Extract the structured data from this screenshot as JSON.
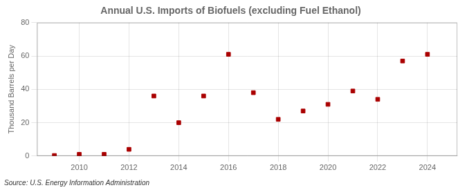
{
  "chart_data": {
    "type": "scatter",
    "title": "Annual U.S. Imports of Biofuels (excluding Fuel Ethanol)",
    "ylabel": "Thousand Barrels per Day",
    "annotation": "Source: U.S. Energy Information Administration",
    "x": [
      2009,
      2010,
      2011,
      2012,
      2013,
      2014,
      2015,
      2016,
      2017,
      2018,
      2019,
      2020,
      2021,
      2022,
      2023,
      2024
    ],
    "values": [
      0.3,
      1.0,
      1.0,
      4.0,
      36.0,
      20.0,
      36.0,
      61.0,
      38.0,
      22.0,
      27.0,
      31.0,
      39.0,
      34.0,
      57.0,
      61.0
    ],
    "color": "#aa0000",
    "marker": "square",
    "xlim": [
      2008.3,
      2025.2
    ],
    "xticks": [
      2010,
      2012,
      2014,
      2016,
      2018,
      2020,
      2022,
      2024
    ],
    "ylim": [
      0,
      80
    ],
    "yticks": [
      0,
      20,
      40,
      60,
      80
    ],
    "grid": true
  }
}
